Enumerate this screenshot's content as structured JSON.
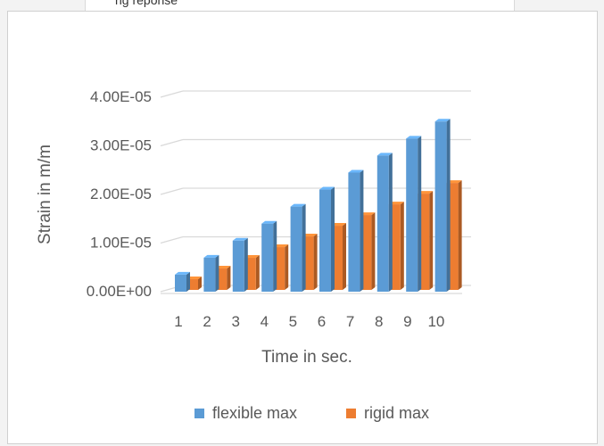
{
  "page_fragment_text": "ng reponse",
  "chart_data": {
    "type": "bar",
    "variant": "3d-clustered-column",
    "title": "",
    "xlabel": "Time in sec.",
    "ylabel": "Strain in m/m",
    "categories": [
      "1",
      "2",
      "3",
      "4",
      "5",
      "6",
      "7",
      "8",
      "9",
      "10"
    ],
    "y_ticks": [
      "0.00E+00",
      "1.00E-05",
      "2.00E-05",
      "3.00E-05",
      "4.00E-05"
    ],
    "ylim": [
      0,
      4e-05
    ],
    "grid": true,
    "legend_position": "bottom",
    "series": [
      {
        "name": "flexible max",
        "color": "#5b9bd5",
        "values": [
          3.5e-06,
          7e-06,
          1.05e-05,
          1.4e-05,
          1.75e-05,
          2.1e-05,
          2.45e-05,
          2.8e-05,
          3.15e-05,
          3.5e-05
        ]
      },
      {
        "name": "rigid max",
        "color": "#ed7d31",
        "values": [
          2.2e-06,
          4.4e-06,
          6.6e-06,
          8.8e-06,
          1.1e-05,
          1.32e-05,
          1.54e-05,
          1.76e-05,
          1.98e-05,
          2.2e-05
        ]
      }
    ]
  }
}
